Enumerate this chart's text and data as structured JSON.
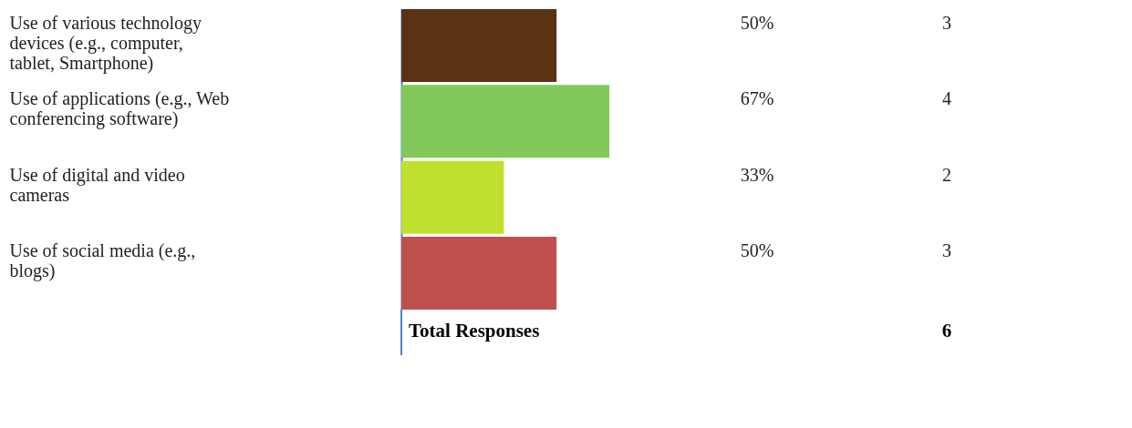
{
  "chart_data": {
    "type": "bar",
    "orientation": "horizontal",
    "categories": [
      "Use of various technology devices (e.g., computer, tablet, Smartphone)",
      "Use of applications (e.g., Web conferencing software)",
      "Use of digital and video cameras",
      "Use of social media (e.g., blogs)"
    ],
    "values": [
      50,
      67,
      33,
      50
    ],
    "colors": [
      "#5a3214",
      "#82c85a",
      "#c0e030",
      "#c0504d"
    ],
    "value_labels": [
      "50%",
      "67%",
      "33%",
      "50%"
    ],
    "annotations": [
      "3",
      "4",
      "2",
      "3",
      "Total Responses",
      "6"
    ],
    "grid": false
  }
}
